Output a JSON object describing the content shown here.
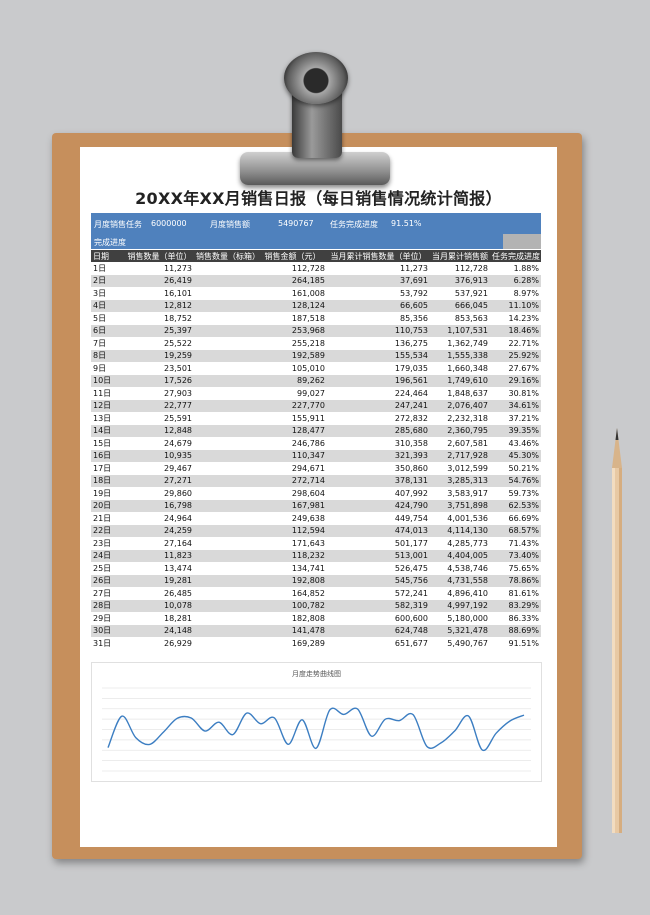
{
  "title": "20XX年XX月销售日报（每日销售情况统计简报）",
  "summary": {
    "monthly_task_label": "月度销售任务",
    "monthly_task_value": "6000000",
    "monthly_sales_label": "月度销售额",
    "monthly_sales_value": "5490767",
    "completion_label": "任务完成进度",
    "completion_value": "91.51%"
  },
  "progress": {
    "label": "完成进度",
    "fraction": 0.9151
  },
  "table": {
    "headers": [
      "日期",
      "销售数量（单位）",
      "销售数量（标箱）",
      "销售金额（元）",
      "当月累计销售数量（单位）",
      "当月累计销售额",
      "任务完成进度"
    ],
    "rows": [
      [
        "1日",
        "11,273",
        "",
        "112,728",
        "11,273",
        "112,728",
        "1.88%"
      ],
      [
        "2日",
        "26,419",
        "",
        "264,185",
        "37,691",
        "376,913",
        "6.28%"
      ],
      [
        "3日",
        "16,101",
        "",
        "161,008",
        "53,792",
        "537,921",
        "8.97%"
      ],
      [
        "4日",
        "12,812",
        "",
        "128,124",
        "66,605",
        "666,045",
        "11.10%"
      ],
      [
        "5日",
        "18,752",
        "",
        "187,518",
        "85,356",
        "853,563",
        "14.23%"
      ],
      [
        "6日",
        "25,397",
        "",
        "253,968",
        "110,753",
        "1,107,531",
        "18.46%"
      ],
      [
        "7日",
        "25,522",
        "",
        "255,218",
        "136,275",
        "1,362,749",
        "22.71%"
      ],
      [
        "8日",
        "19,259",
        "",
        "192,589",
        "155,534",
        "1,555,338",
        "25.92%"
      ],
      [
        "9日",
        "23,501",
        "",
        "105,010",
        "179,035",
        "1,660,348",
        "27.67%"
      ],
      [
        "10日",
        "17,526",
        "",
        "89,262",
        "196,561",
        "1,749,610",
        "29.16%"
      ],
      [
        "11日",
        "27,903",
        "",
        "99,027",
        "224,464",
        "1,848,637",
        "30.81%"
      ],
      [
        "12日",
        "22,777",
        "",
        "227,770",
        "247,241",
        "2,076,407",
        "34.61%"
      ],
      [
        "13日",
        "25,591",
        "",
        "155,911",
        "272,832",
        "2,232,318",
        "37.21%"
      ],
      [
        "14日",
        "12,848",
        "",
        "128,477",
        "285,680",
        "2,360,795",
        "39.35%"
      ],
      [
        "15日",
        "24,679",
        "",
        "246,786",
        "310,358",
        "2,607,581",
        "43.46%"
      ],
      [
        "16日",
        "10,935",
        "",
        "110,347",
        "321,393",
        "2,717,928",
        "45.30%"
      ],
      [
        "17日",
        "29,467",
        "",
        "294,671",
        "350,860",
        "3,012,599",
        "50.21%"
      ],
      [
        "18日",
        "27,271",
        "",
        "272,714",
        "378,131",
        "3,285,313",
        "54.76%"
      ],
      [
        "19日",
        "29,860",
        "",
        "298,604",
        "407,992",
        "3,583,917",
        "59.73%"
      ],
      [
        "20日",
        "16,798",
        "",
        "167,981",
        "424,790",
        "3,751,898",
        "62.53%"
      ],
      [
        "21日",
        "24,964",
        "",
        "249,638",
        "449,754",
        "4,001,536",
        "66.69%"
      ],
      [
        "22日",
        "24,259",
        "",
        "112,594",
        "474,013",
        "4,114,130",
        "68.57%"
      ],
      [
        "23日",
        "27,164",
        "",
        "171,643",
        "501,177",
        "4,285,773",
        "71.43%"
      ],
      [
        "24日",
        "11,823",
        "",
        "118,232",
        "513,001",
        "4,404,005",
        "73.40%"
      ],
      [
        "25日",
        "13,474",
        "",
        "134,741",
        "526,475",
        "4,538,746",
        "75.65%"
      ],
      [
        "26日",
        "19,281",
        "",
        "192,808",
        "545,756",
        "4,731,558",
        "78.86%"
      ],
      [
        "27日",
        "26,485",
        "",
        "164,852",
        "572,241",
        "4,896,410",
        "81.61%"
      ],
      [
        "28日",
        "10,078",
        "",
        "100,782",
        "582,319",
        "4,997,192",
        "83.29%"
      ],
      [
        "29日",
        "18,281",
        "",
        "182,808",
        "600,600",
        "5,180,000",
        "86.33%"
      ],
      [
        "30日",
        "24,148",
        "",
        "141,478",
        "624,748",
        "5,321,478",
        "88.69%"
      ],
      [
        "31日",
        "26,929",
        "",
        "169,289",
        "651,677",
        "5,490,767",
        "91.51%"
      ]
    ]
  },
  "chart_data": {
    "type": "line",
    "title": "月度走势曲线图",
    "x": [
      1,
      2,
      3,
      4,
      5,
      6,
      7,
      8,
      9,
      10,
      11,
      12,
      13,
      14,
      15,
      16,
      17,
      18,
      19,
      20,
      21,
      22,
      23,
      24,
      25,
      26,
      27,
      28,
      29,
      30,
      31
    ],
    "series": [
      {
        "values": [
          11273,
          26419,
          16101,
          12812,
          18752,
          25397,
          25522,
          19259,
          23501,
          17526,
          27903,
          22777,
          25591,
          12848,
          24679,
          10935,
          29467,
          27271,
          29860,
          16798,
          24964,
          24259,
          27164,
          11823,
          13474,
          19281,
          26485,
          10078,
          18281,
          24148,
          26929
        ]
      }
    ],
    "ylim": [
      0,
      40000
    ],
    "grid": true,
    "line_color": "#3c7ec2"
  }
}
